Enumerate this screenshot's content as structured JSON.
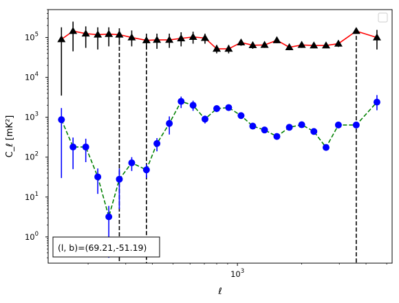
{
  "chart_data": {
    "type": "scatter",
    "xlabel": "ℓ",
    "ylabel": "C_ℓ  [mK²]",
    "x_scale": "log",
    "y_scale": "log",
    "xlim": [
      130,
      5300
    ],
    "ylim": [
      0.22,
      500000
    ],
    "x_tick_labels": [
      {
        "value": 1000,
        "label": "10^3"
      }
    ],
    "y_tick_labels": [
      {
        "value": 1,
        "label": "10^0"
      },
      {
        "value": 10,
        "label": "10^1"
      },
      {
        "value": 100,
        "label": "10^2"
      },
      {
        "value": 1000,
        "label": "10^3"
      },
      {
        "value": 10000,
        "label": "10^4"
      },
      {
        "value": 100000,
        "label": "10^5"
      }
    ],
    "annotation": "(l, b)=(69.21,-51.19)",
    "legend": {
      "placement": "top-right",
      "entries": []
    },
    "vertical_lines": [
      {
        "x": 280,
        "from": 0.22,
        "to": 120000
      },
      {
        "x": 375,
        "from": 0.22,
        "to": 90000
      },
      {
        "x": 3600,
        "from": 0.22,
        "to": 110000
      }
    ],
    "series": [
      {
        "marker": "triangle",
        "marker_color": "#000000",
        "line_color": "#ff0000",
        "line_style": "solid",
        "error_color": "#000000",
        "points": [
          {
            "x": 150,
            "y": 90000,
            "lo": 3500,
            "hi": 180000
          },
          {
            "x": 170,
            "y": 145000,
            "lo": 45000,
            "hi": 250000
          },
          {
            "x": 195,
            "y": 125000,
            "lo": 55000,
            "hi": 190000
          },
          {
            "x": 222,
            "y": 118000,
            "lo": 50000,
            "hi": 180000
          },
          {
            "x": 250,
            "y": 122000,
            "lo": 60000,
            "hi": 180000
          },
          {
            "x": 280,
            "y": 118000,
            "lo": 65000,
            "hi": 170000
          },
          {
            "x": 320,
            "y": 100000,
            "lo": 60000,
            "hi": 150000
          },
          {
            "x": 375,
            "y": 85000,
            "lo": 50000,
            "hi": 125000
          },
          {
            "x": 420,
            "y": 87000,
            "lo": 52000,
            "hi": 125000
          },
          {
            "x": 480,
            "y": 87000,
            "lo": 55000,
            "hi": 125000
          },
          {
            "x": 545,
            "y": 95000,
            "lo": 60000,
            "hi": 135000
          },
          {
            "x": 620,
            "y": 103000,
            "lo": 70000,
            "hi": 140000
          },
          {
            "x": 705,
            "y": 97000,
            "lo": 70000,
            "hi": 125000
          },
          {
            "x": 800,
            "y": 52000,
            "lo": 40000,
            "hi": 65000
          },
          {
            "x": 910,
            "y": 52000,
            "lo": 40000,
            "hi": 65000
          },
          {
            "x": 1040,
            "y": 75000,
            "lo": 62000,
            "hi": 88000
          },
          {
            "x": 1180,
            "y": 64000,
            "lo": 52000,
            "hi": 77000
          },
          {
            "x": 1340,
            "y": 65000,
            "lo": 55000,
            "hi": 75000
          },
          {
            "x": 1530,
            "y": 85000,
            "lo": 72000,
            "hi": 100000
          },
          {
            "x": 1750,
            "y": 57000,
            "lo": 48000,
            "hi": 67000
          },
          {
            "x": 2000,
            "y": 65000,
            "lo": 55000,
            "hi": 75000
          },
          {
            "x": 2280,
            "y": 63000,
            "lo": 54000,
            "hi": 72000
          },
          {
            "x": 2600,
            "y": 63000,
            "lo": 54000,
            "hi": 72000
          },
          {
            "x": 2970,
            "y": 70000,
            "lo": 58000,
            "hi": 84000
          },
          {
            "x": 3600,
            "y": 145000,
            "lo": 125000,
            "hi": 165000
          },
          {
            "x": 4500,
            "y": 100000,
            "lo": 50000,
            "hi": 155000
          }
        ]
      },
      {
        "marker": "circle",
        "marker_color": "#0000ff",
        "line_color": "#008000",
        "line_style": "dashed",
        "error_color": "#0000ff",
        "points": [
          {
            "x": 150,
            "y": 870,
            "lo": 30,
            "hi": 1700
          },
          {
            "x": 170,
            "y": 180,
            "lo": 50,
            "hi": 310
          },
          {
            "x": 195,
            "y": 180,
            "lo": 75,
            "hi": 290
          },
          {
            "x": 222,
            "y": 32,
            "lo": 12,
            "hi": 52
          },
          {
            "x": 250,
            "y": 3.2,
            "lo": 0.3,
            "hi": 6
          },
          {
            "x": 280,
            "y": 28,
            "lo": 5,
            "hi": 52
          },
          {
            "x": 320,
            "y": 72,
            "lo": 45,
            "hi": 100
          },
          {
            "x": 375,
            "y": 48,
            "lo": 30,
            "hi": 66
          },
          {
            "x": 420,
            "y": 220,
            "lo": 140,
            "hi": 300
          },
          {
            "x": 480,
            "y": 700,
            "lo": 370,
            "hi": 1050
          },
          {
            "x": 545,
            "y": 2500,
            "lo": 1700,
            "hi": 3300
          },
          {
            "x": 620,
            "y": 2000,
            "lo": 1450,
            "hi": 2600
          },
          {
            "x": 705,
            "y": 900,
            "lo": 700,
            "hi": 1100
          },
          {
            "x": 800,
            "y": 1650,
            "lo": 1350,
            "hi": 1950
          },
          {
            "x": 910,
            "y": 1750,
            "lo": 1500,
            "hi": 2000
          },
          {
            "x": 1040,
            "y": 1100,
            "lo": 950,
            "hi": 1250
          },
          {
            "x": 1180,
            "y": 600,
            "lo": 530,
            "hi": 670
          },
          {
            "x": 1340,
            "y": 480,
            "lo": 430,
            "hi": 530
          },
          {
            "x": 1530,
            "y": 330,
            "lo": 290,
            "hi": 370
          },
          {
            "x": 1750,
            "y": 560,
            "lo": 500,
            "hi": 620
          },
          {
            "x": 2000,
            "y": 650,
            "lo": 590,
            "hi": 710
          },
          {
            "x": 2280,
            "y": 440,
            "lo": 395,
            "hi": 485
          },
          {
            "x": 2600,
            "y": 175,
            "lo": 150,
            "hi": 200
          },
          {
            "x": 2970,
            "y": 640,
            "lo": 560,
            "hi": 720
          },
          {
            "x": 3600,
            "y": 640,
            "lo": 560,
            "hi": 720
          },
          {
            "x": 4500,
            "y": 2400,
            "lo": 1500,
            "hi": 3600
          }
        ]
      }
    ]
  }
}
